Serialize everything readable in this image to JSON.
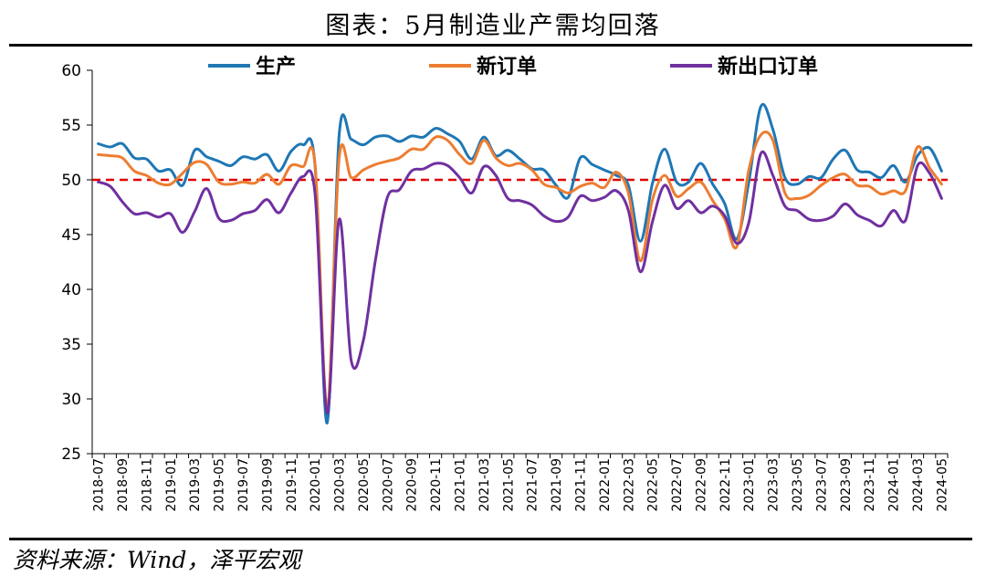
{
  "figure": {
    "title": "图表：5月制造业产需均回落",
    "source": "资料来源：Wind，泽平宏观"
  },
  "chart_data": {
    "type": "line",
    "x": [
      "2018-07",
      "2018-08",
      "2018-09",
      "2018-10",
      "2018-11",
      "2018-12",
      "2019-01",
      "2019-02",
      "2019-03",
      "2019-04",
      "2019-05",
      "2019-06",
      "2019-07",
      "2019-08",
      "2019-09",
      "2019-10",
      "2019-11",
      "2019-12",
      "2020-01",
      "2020-02",
      "2020-03",
      "2020-04",
      "2020-05",
      "2020-06",
      "2020-07",
      "2020-08",
      "2020-09",
      "2020-10",
      "2020-11",
      "2020-12",
      "2021-01",
      "2021-02",
      "2021-03",
      "2021-04",
      "2021-05",
      "2021-06",
      "2021-07",
      "2021-08",
      "2021-09",
      "2021-10",
      "2021-11",
      "2021-12",
      "2022-01",
      "2022-02",
      "2022-03",
      "2022-04",
      "2022-05",
      "2022-06",
      "2022-07",
      "2022-08",
      "2022-09",
      "2022-10",
      "2022-11",
      "2022-12",
      "2023-01",
      "2023-02",
      "2023-03",
      "2023-04",
      "2023-05",
      "2023-06",
      "2023-07",
      "2023-08",
      "2023-09",
      "2023-10",
      "2023-11",
      "2023-12",
      "2024-01",
      "2024-02",
      "2024-03",
      "2024-04",
      "2024-05"
    ],
    "x_tick_labels": [
      "2018-07",
      "2018-09",
      "2018-11",
      "2019-01",
      "2019-03",
      "2019-05",
      "2019-07",
      "2019-09",
      "2019-11",
      "2020-01",
      "2020-03",
      "2020-05",
      "2020-07",
      "2020-09",
      "2020-11",
      "2021-01",
      "2021-03",
      "2021-05",
      "2021-07",
      "2021-09",
      "2021-11",
      "2022-01",
      "2022-03",
      "2022-05",
      "2022-07",
      "2022-09",
      "2022-11",
      "2023-01",
      "2023-03",
      "2023-05",
      "2023-07",
      "2023-09",
      "2023-11",
      "2024-01",
      "2024-03",
      "2024-05"
    ],
    "ylim": [
      25,
      60
    ],
    "yticks": [
      25,
      30,
      35,
      40,
      45,
      50,
      55,
      60
    ],
    "reference_line": {
      "value": 50,
      "color": "#e00000",
      "style": "dashed"
    },
    "legend_position": "top",
    "series": [
      {
        "name": "生产",
        "color": "#1f77b4",
        "values": [
          53.3,
          53.0,
          53.3,
          52.0,
          51.9,
          50.8,
          50.9,
          49.5,
          52.7,
          52.1,
          51.7,
          51.3,
          52.1,
          51.9,
          52.3,
          50.8,
          52.6,
          53.2,
          51.3,
          27.8,
          54.1,
          53.7,
          53.2,
          53.9,
          54.0,
          53.5,
          54.0,
          53.9,
          54.7,
          54.2,
          53.5,
          51.9,
          53.9,
          52.2,
          52.7,
          51.9,
          51.0,
          50.9,
          49.5,
          48.4,
          52.0,
          51.4,
          50.9,
          50.4,
          49.5,
          44.4,
          49.7,
          52.8,
          49.8,
          49.8,
          51.5,
          49.6,
          47.8,
          44.6,
          49.8,
          56.7,
          54.6,
          50.2,
          49.6,
          50.3,
          50.2,
          51.9,
          52.7,
          50.9,
          50.7,
          50.2,
          51.3,
          49.8,
          52.2,
          52.9,
          50.8
        ]
      },
      {
        "name": "新订单",
        "color": "#ed7d31",
        "values": [
          52.3,
          52.2,
          52.0,
          50.8,
          50.4,
          49.7,
          49.6,
          50.6,
          51.6,
          51.4,
          49.8,
          49.6,
          49.8,
          49.7,
          50.5,
          49.6,
          51.3,
          51.2,
          51.4,
          29.3,
          52.0,
          50.2,
          50.9,
          51.4,
          51.7,
          52.0,
          52.8,
          52.8,
          53.9,
          53.6,
          52.3,
          51.5,
          53.6,
          52.0,
          51.3,
          51.5,
          50.9,
          49.6,
          49.3,
          48.8,
          49.4,
          49.7,
          49.3,
          50.7,
          48.8,
          42.6,
          48.2,
          50.4,
          48.5,
          49.2,
          49.8,
          48.1,
          46.4,
          43.9,
          50.9,
          54.1,
          53.6,
          48.8,
          48.3,
          48.6,
          49.5,
          50.2,
          50.5,
          49.5,
          49.4,
          48.7,
          49.0,
          49.0,
          53.0,
          51.1,
          49.6
        ]
      },
      {
        "name": "新出口订单",
        "color": "#7030a0",
        "values": [
          49.8,
          49.4,
          48.0,
          46.9,
          47.0,
          46.6,
          46.9,
          45.2,
          47.1,
          49.2,
          46.5,
          46.3,
          46.9,
          47.2,
          48.2,
          47.0,
          48.8,
          50.3,
          48.7,
          28.7,
          46.4,
          33.5,
          35.3,
          42.6,
          48.4,
          49.1,
          50.8,
          51.0,
          51.5,
          51.3,
          50.2,
          48.8,
          51.2,
          50.4,
          48.3,
          48.1,
          47.7,
          46.7,
          46.2,
          46.6,
          48.5,
          48.1,
          48.4,
          49.0,
          47.2,
          41.6,
          46.2,
          49.5,
          47.4,
          48.1,
          47.0,
          47.6,
          46.7,
          44.2,
          46.1,
          52.4,
          50.4,
          47.6,
          47.2,
          46.4,
          46.3,
          46.7,
          47.8,
          46.8,
          46.3,
          45.8,
          47.2,
          46.3,
          51.3,
          50.6,
          48.3
        ]
      }
    ]
  }
}
